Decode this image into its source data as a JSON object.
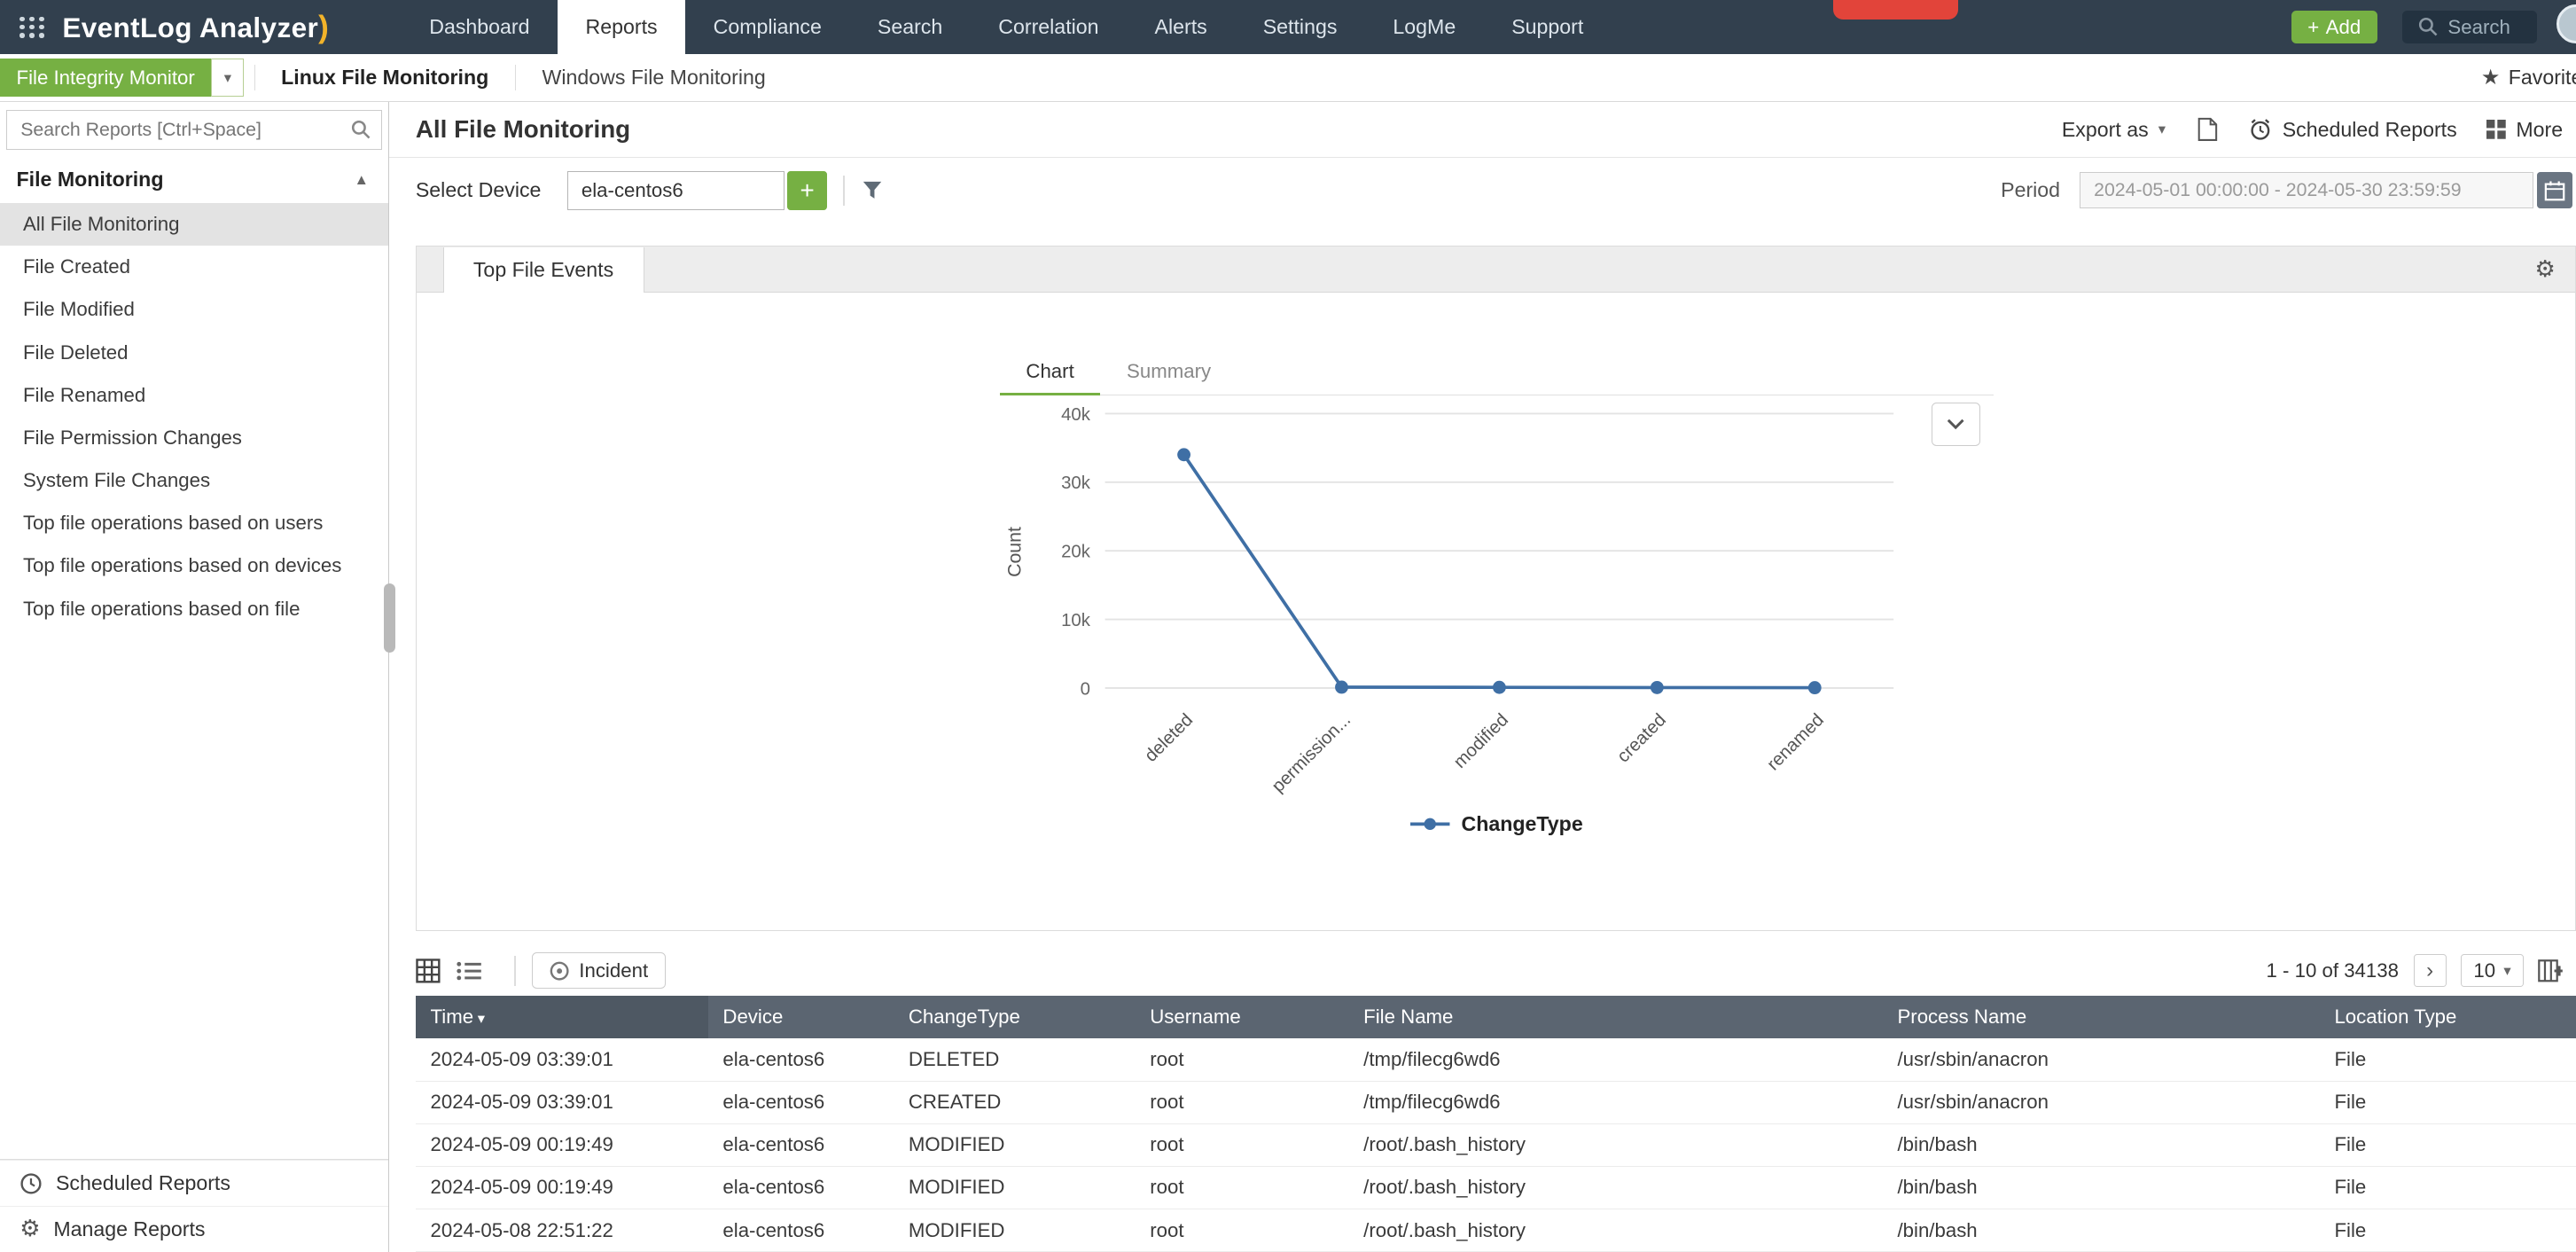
{
  "topbar": {
    "logo": "EventLog Analyzer",
    "nav": [
      {
        "label": "Dashboard",
        "active": false
      },
      {
        "label": "Reports",
        "active": true
      },
      {
        "label": "Compliance",
        "active": false
      },
      {
        "label": "Search",
        "active": false
      },
      {
        "label": "Correlation",
        "active": false
      },
      {
        "label": "Alerts",
        "active": false
      },
      {
        "label": "Settings",
        "active": false
      },
      {
        "label": "LogMe",
        "active": false
      },
      {
        "label": "Support",
        "active": false
      }
    ],
    "add_plus": "+",
    "add_button": "Add",
    "search_placeholder": "Search"
  },
  "subnav": {
    "monitor_select": "File Integrity Monitor",
    "tabs": [
      {
        "label": "Linux File Monitoring",
        "active": true
      },
      {
        "label": "Windows File Monitoring",
        "active": false
      }
    ],
    "favorite": "Favorite"
  },
  "sidebar": {
    "search_placeholder": "Search Reports [Ctrl+Space]",
    "section_title": "File Monitoring",
    "items": [
      {
        "label": "All File Monitoring",
        "active": true
      },
      {
        "label": "File Created",
        "active": false
      },
      {
        "label": "File Modified",
        "active": false
      },
      {
        "label": "File Deleted",
        "active": false
      },
      {
        "label": "File Renamed",
        "active": false
      },
      {
        "label": "File Permission Changes",
        "active": false
      },
      {
        "label": "System File Changes",
        "active": false
      },
      {
        "label": "Top file operations based on users",
        "active": false
      },
      {
        "label": "Top file operations based on devices",
        "active": false
      },
      {
        "label": "Top file operations based on file",
        "active": false
      }
    ],
    "footer_items": [
      "Scheduled Reports",
      "Manage Reports"
    ]
  },
  "main": {
    "title": "All File Monitoring",
    "export_label": "Export as",
    "scheduled_label": "Scheduled Reports",
    "more_label": "More",
    "select_device_label": "Select Device",
    "device_value": "ela-centos6",
    "add_device_plus": "+",
    "period_label": "Period",
    "period_value": "2024-05-01 00:00:00 - 2024-05-30 23:59:59",
    "panel_tab": "Top File Events",
    "chart_tab": "Chart",
    "summary_tab": "Summary"
  },
  "chart_data": {
    "type": "line",
    "title": "Top File Events",
    "categories": [
      "deleted",
      "permission...",
      "modified",
      "created",
      "renamed"
    ],
    "values": [
      34000,
      120,
      90,
      60,
      40
    ],
    "ylabel": "Count",
    "xlabel": "",
    "yticks": [
      "0",
      "10k",
      "20k",
      "30k",
      "40k"
    ],
    "ylim": [
      0,
      40000
    ],
    "grid": "horizontal",
    "legend": "ChangeType",
    "legend_position": "bottom",
    "color": "#3f6fa5"
  },
  "table": {
    "incident_label": "Incident",
    "pagination": "1 - 10 of 34138",
    "page_size": "10",
    "columns": [
      "Time",
      "Device",
      "ChangeType",
      "Username",
      "File Name",
      "Process Name",
      "Location Type"
    ],
    "rows": [
      [
        "2024-05-09 03:39:01",
        "ela-centos6",
        "DELETED",
        "root",
        "/tmp/filecg6wd6",
        "/usr/sbin/anacron",
        "File"
      ],
      [
        "2024-05-09 03:39:01",
        "ela-centos6",
        "CREATED",
        "root",
        "/tmp/filecg6wd6",
        "/usr/sbin/anacron",
        "File"
      ],
      [
        "2024-05-09 00:19:49",
        "ela-centos6",
        "MODIFIED",
        "root",
        "/root/.bash_history",
        "/bin/bash",
        "File"
      ],
      [
        "2024-05-09 00:19:49",
        "ela-centos6",
        "MODIFIED",
        "root",
        "/root/.bash_history",
        "/bin/bash",
        "File"
      ],
      [
        "2024-05-08 22:51:22",
        "ela-centos6",
        "MODIFIED",
        "root",
        "/root/.bash_history",
        "/bin/bash",
        "File"
      ]
    ]
  }
}
